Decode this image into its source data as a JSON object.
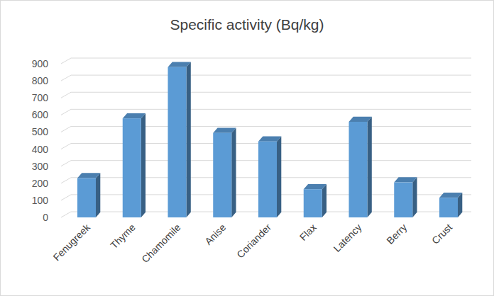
{
  "chart_data": {
    "type": "bar",
    "title": "Specific activity (Bq/kg)",
    "categories": [
      "Fenugreek",
      "Thyme",
      "Chamomile",
      "Anise",
      "Coriander",
      "Flax",
      "Latency",
      "Berry",
      "Crust"
    ],
    "values": [
      230,
      580,
      880,
      495,
      445,
      165,
      560,
      205,
      115
    ],
    "color": "#5b9bd5",
    "ylim": [
      0,
      900
    ],
    "yticks": [
      0,
      100,
      200,
      300,
      400,
      500,
      600,
      700,
      800,
      900
    ],
    "grid": true
  }
}
